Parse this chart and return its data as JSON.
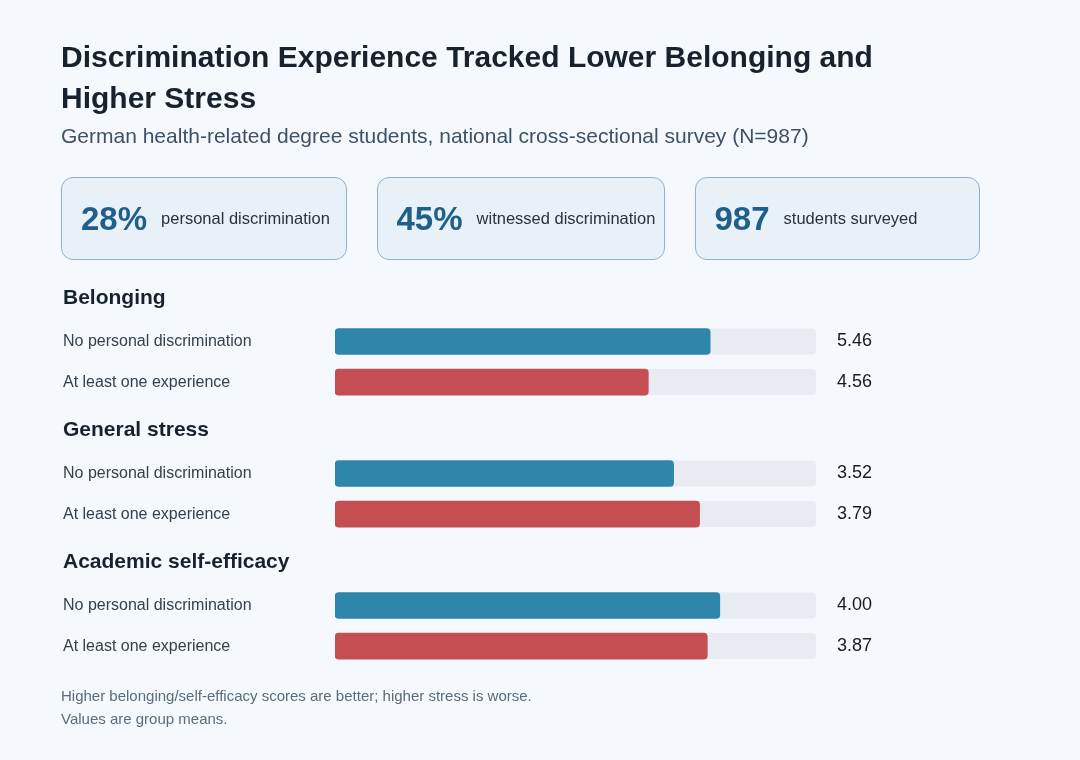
{
  "chart_data": [
    {
      "type": "other",
      "title": "Discrimination Experience Tracked Lower Belonging and Higher Stress",
      "subtitle": "German health-related degree students, national cross-sectional survey (N=987)",
      "annotations": [
        "28%",
        "personal discrimination",
        "45%",
        "witnessed discrimination",
        "987",
        "students surveyed"
      ]
    },
    {
      "type": "bar",
      "orientation": "horizontal",
      "title": "Belonging",
      "categories": [
        "No personal discrimination",
        "At least one experience"
      ],
      "values": [
        5.46,
        4.56
      ],
      "colors": [
        "#2e86ab",
        "#c44e52"
      ],
      "xlim": [
        0,
        7
      ],
      "tick_labels": "y",
      "value_labels": [
        "5.46",
        "4.56"
      ]
    },
    {
      "type": "bar",
      "orientation": "horizontal",
      "title": "General stress",
      "categories": [
        "No personal discrimination",
        "At least one experience"
      ],
      "values": [
        3.52,
        3.79
      ],
      "colors": [
        "#2e86ab",
        "#c44e52"
      ],
      "xlim": [
        0,
        5
      ],
      "tick_labels": "y",
      "value_labels": [
        "3.52",
        "3.79"
      ]
    },
    {
      "type": "bar",
      "orientation": "horizontal",
      "title": "Academic self-efficacy",
      "categories": [
        "No personal discrimination",
        "At least one experience"
      ],
      "values": [
        4.0,
        3.87
      ],
      "colors": [
        "#2e86ab",
        "#c44e52"
      ],
      "xlim": [
        0,
        5
      ],
      "tick_labels": "y",
      "value_labels": [
        "4.00",
        "3.87"
      ],
      "annotations": [
        "Higher belonging/self-efficacy scores are better; higher stress is worse.",
        "Values are group means."
      ]
    }
  ]
}
